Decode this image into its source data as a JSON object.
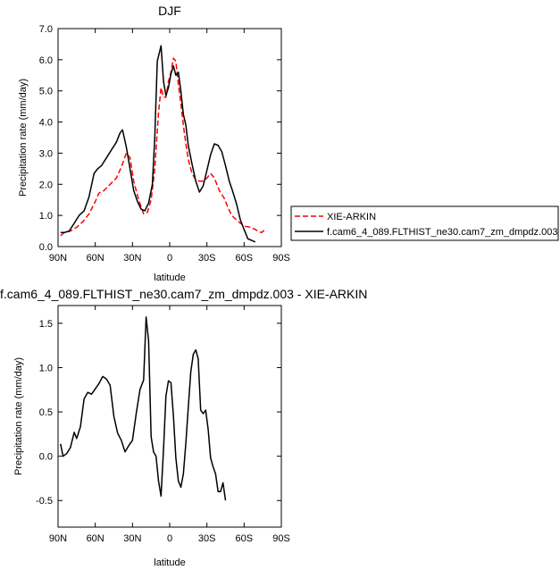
{
  "chart_data": [
    {
      "type": "line",
      "title": "DJF",
      "xlabel": "latitude",
      "ylabel": "Precipitation rate (mm/day)",
      "xlim": [
        -90,
        90
      ],
      "ylim": [
        0,
        7
      ],
      "x_ticks": [
        {
          "value": -90,
          "label": "90N"
        },
        {
          "value": -60,
          "label": "60N"
        },
        {
          "value": -30,
          "label": "30N"
        },
        {
          "value": 0,
          "label": "0"
        },
        {
          "value": 30,
          "label": "30S"
        },
        {
          "value": 60,
          "label": "60S"
        },
        {
          "value": 90,
          "label": "90S"
        }
      ],
      "y_ticks": [
        {
          "value": 0,
          "label": "0.0"
        },
        {
          "value": 1,
          "label": "1.0"
        },
        {
          "value": 2,
          "label": "2.0"
        },
        {
          "value": 3,
          "label": "3.0"
        },
        {
          "value": 4,
          "label": "4.0"
        },
        {
          "value": 5,
          "label": "5.0"
        },
        {
          "value": 6,
          "label": "6.0"
        },
        {
          "value": 7,
          "label": "7.0"
        }
      ],
      "legend_position": "right",
      "series": [
        {
          "name": "XIE-ARKIN",
          "color": "#ff0000",
          "dash": "dashed",
          "points": [
            [
              -88,
              0.35
            ],
            [
              -85,
              0.45
            ],
            [
              -80,
              0.5
            ],
            [
              -75,
              0.62
            ],
            [
              -70,
              0.8
            ],
            [
              -65,
              1.05
            ],
            [
              -60,
              1.45
            ],
            [
              -57,
              1.72
            ],
            [
              -53,
              1.8
            ],
            [
              -48,
              2.0
            ],
            [
              -43,
              2.2
            ],
            [
              -39,
              2.55
            ],
            [
              -35,
              3.0
            ],
            [
              -32,
              2.85
            ],
            [
              -29,
              2.1
            ],
            [
              -25,
              1.5
            ],
            [
              -21,
              1.05
            ],
            [
              -18,
              1.1
            ],
            [
              -15,
              1.5
            ],
            [
              -12,
              2.5
            ],
            [
              -9,
              4.3
            ],
            [
              -7,
              5.1
            ],
            [
              -5,
              4.8
            ],
            [
              -3,
              4.8
            ],
            [
              -1,
              5.3
            ],
            [
              1,
              5.6
            ],
            [
              3,
              6.05
            ],
            [
              5,
              5.95
            ],
            [
              7,
              5.2
            ],
            [
              9,
              4.6
            ],
            [
              11,
              3.9
            ],
            [
              13,
              3.3
            ],
            [
              15,
              2.8
            ],
            [
              18,
              2.35
            ],
            [
              21,
              2.15
            ],
            [
              24,
              2.1
            ],
            [
              27,
              2.1
            ],
            [
              30,
              2.2
            ],
            [
              33,
              2.35
            ],
            [
              36,
              2.2
            ],
            [
              40,
              1.8
            ],
            [
              44,
              1.55
            ],
            [
              47,
              1.25
            ],
            [
              50,
              1.0
            ],
            [
              54,
              0.85
            ],
            [
              57,
              0.75
            ],
            [
              61,
              0.65
            ],
            [
              65,
              0.62
            ],
            [
              69,
              0.55
            ],
            [
              72,
              0.48
            ],
            [
              74,
              0.45
            ],
            [
              77,
              0.55
            ]
          ]
        },
        {
          "name": "f.cam6_4_089.FLTHIST_ne30.cam7_zm_dmpdz.003",
          "color": "#000000",
          "dash": "solid",
          "points": [
            [
              -88,
              0.45
            ],
            [
              -85,
              0.45
            ],
            [
              -81,
              0.5
            ],
            [
              -77,
              0.75
            ],
            [
              -73,
              1.0
            ],
            [
              -69,
              1.15
            ],
            [
              -65,
              1.6
            ],
            [
              -61,
              2.35
            ],
            [
              -58,
              2.5
            ],
            [
              -55,
              2.6
            ],
            [
              -51,
              2.85
            ],
            [
              -47,
              3.1
            ],
            [
              -43,
              3.35
            ],
            [
              -40,
              3.65
            ],
            [
              -38,
              3.75
            ],
            [
              -35,
              3.2
            ],
            [
              -32,
              2.5
            ],
            [
              -29,
              1.8
            ],
            [
              -26,
              1.45
            ],
            [
              -23,
              1.2
            ],
            [
              -20,
              1.15
            ],
            [
              -17,
              1.4
            ],
            [
              -14,
              2.0
            ],
            [
              -12,
              3.5
            ],
            [
              -10,
              5.95
            ],
            [
              -7,
              6.45
            ],
            [
              -5,
              5.3
            ],
            [
              -3,
              4.85
            ],
            [
              -1,
              5.1
            ],
            [
              1,
              5.55
            ],
            [
              3,
              5.8
            ],
            [
              5,
              5.5
            ],
            [
              7,
              5.6
            ],
            [
              9,
              5.0
            ],
            [
              11,
              4.25
            ],
            [
              13,
              3.9
            ],
            [
              15,
              3.25
            ],
            [
              18,
              2.65
            ],
            [
              21,
              2.1
            ],
            [
              24,
              1.75
            ],
            [
              27,
              1.95
            ],
            [
              30,
              2.45
            ],
            [
              33,
              2.95
            ],
            [
              36,
              3.3
            ],
            [
              39,
              3.25
            ],
            [
              42,
              3.05
            ],
            [
              45,
              2.6
            ],
            [
              48,
              2.1
            ],
            [
              51,
              1.75
            ],
            [
              54,
              1.35
            ],
            [
              57,
              0.85
            ],
            [
              60,
              0.55
            ],
            [
              63,
              0.25
            ],
            [
              66,
              0.2
            ],
            [
              69,
              0.15
            ]
          ]
        }
      ]
    },
    {
      "type": "line",
      "title": "f.cam6_4_089.FLTHIST_ne30.cam7_zm_dmpdz.003 - XIE-ARKIN",
      "xlabel": "latitude",
      "ylabel": "Precipitation rate (mm/day)",
      "xlim": [
        -90,
        90
      ],
      "ylim": [
        -0.8,
        1.7
      ],
      "x_ticks": [
        {
          "value": -90,
          "label": "90N"
        },
        {
          "value": -60,
          "label": "60N"
        },
        {
          "value": -30,
          "label": "30N"
        },
        {
          "value": 0,
          "label": "0"
        },
        {
          "value": 30,
          "label": "30S"
        },
        {
          "value": 60,
          "label": "60S"
        },
        {
          "value": 90,
          "label": "90S"
        }
      ],
      "y_ticks": [
        {
          "value": -0.5,
          "label": "-0.5"
        },
        {
          "value": 0,
          "label": "0.0"
        },
        {
          "value": 0.5,
          "label": "0.5"
        },
        {
          "value": 1.0,
          "label": "1.0"
        },
        {
          "value": 1.5,
          "label": "1.5"
        }
      ],
      "series": [
        {
          "color": "#000000",
          "dash": "solid",
          "points": [
            [
              -88,
              0.14
            ],
            [
              -86,
              0.0
            ],
            [
              -83,
              0.03
            ],
            [
              -80,
              0.1
            ],
            [
              -77,
              0.27
            ],
            [
              -75,
              0.2
            ],
            [
              -72,
              0.33
            ],
            [
              -69,
              0.65
            ],
            [
              -66,
              0.72
            ],
            [
              -63,
              0.7
            ],
            [
              -60,
              0.76
            ],
            [
              -57,
              0.82
            ],
            [
              -54,
              0.9
            ],
            [
              -51,
              0.87
            ],
            [
              -48,
              0.8
            ],
            [
              -45,
              0.45
            ],
            [
              -42,
              0.26
            ],
            [
              -39,
              0.18
            ],
            [
              -36,
              0.05
            ],
            [
              -33,
              0.12
            ],
            [
              -30,
              0.18
            ],
            [
              -27,
              0.48
            ],
            [
              -24,
              0.75
            ],
            [
              -21,
              0.86
            ],
            [
              -19,
              1.57
            ],
            [
              -17,
              1.3
            ],
            [
              -15,
              0.22
            ],
            [
              -13,
              0.05
            ],
            [
              -11,
              0.0
            ],
            [
              -9,
              -0.28
            ],
            [
              -7,
              -0.45
            ],
            [
              -5,
              0.08
            ],
            [
              -3,
              0.68
            ],
            [
              -1,
              0.85
            ],
            [
              1,
              0.83
            ],
            [
              3,
              0.45
            ],
            [
              5,
              -0.02
            ],
            [
              7,
              -0.28
            ],
            [
              9,
              -0.35
            ],
            [
              11,
              -0.2
            ],
            [
              13,
              0.15
            ],
            [
              15,
              0.55
            ],
            [
              17,
              0.95
            ],
            [
              19,
              1.15
            ],
            [
              21,
              1.2
            ],
            [
              23,
              1.1
            ],
            [
              25,
              0.52
            ],
            [
              27,
              0.48
            ],
            [
              29,
              0.52
            ],
            [
              31,
              0.3
            ],
            [
              33,
              -0.02
            ],
            [
              35,
              -0.12
            ],
            [
              37,
              -0.2
            ],
            [
              39,
              -0.4
            ],
            [
              41,
              -0.4
            ],
            [
              43,
              -0.3
            ],
            [
              45,
              -0.5
            ]
          ]
        }
      ]
    }
  ]
}
